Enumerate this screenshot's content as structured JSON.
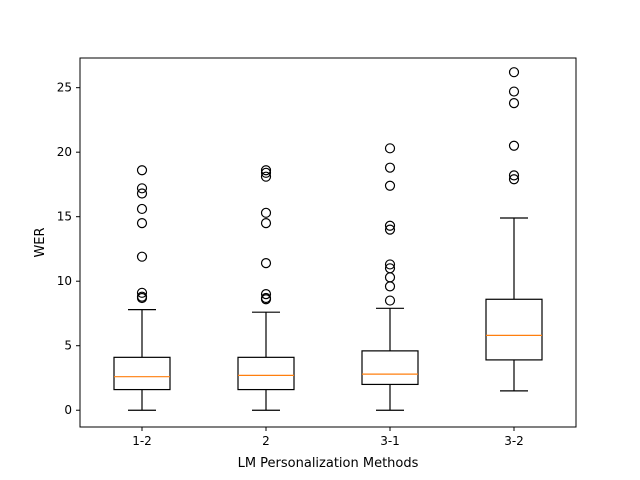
{
  "chart_data": {
    "type": "box",
    "title": "",
    "xlabel": "LM Personalization Methods",
    "ylabel": "WER",
    "ylim": [
      -1.3,
      27.3
    ],
    "yticks": [
      0,
      5,
      10,
      15,
      20,
      25
    ],
    "grid": false,
    "categories": [
      "1-2",
      "2",
      "3-1",
      "3-2"
    ],
    "boxes": [
      {
        "category": "1-2",
        "whisker_low": 0.0,
        "q1": 1.6,
        "median": 2.6,
        "q3": 4.1,
        "whisker_high": 7.8,
        "outliers": [
          8.7,
          8.8,
          9.1,
          11.9,
          14.5,
          15.6,
          16.8,
          17.2,
          18.6
        ]
      },
      {
        "category": "2",
        "whisker_low": 0.0,
        "q1": 1.6,
        "median": 2.7,
        "q3": 4.1,
        "whisker_high": 7.6,
        "outliers": [
          8.6,
          8.7,
          9.0,
          11.4,
          14.5,
          15.3,
          18.1,
          18.4,
          18.6
        ]
      },
      {
        "category": "3-1",
        "whisker_low": 0.0,
        "q1": 2.0,
        "median": 2.8,
        "q3": 4.6,
        "whisker_high": 7.9,
        "outliers": [
          8.5,
          9.6,
          10.3,
          11.0,
          11.3,
          14.0,
          14.3,
          17.4,
          18.8,
          20.3
        ]
      },
      {
        "category": "3-2",
        "whisker_low": 1.5,
        "q1": 3.9,
        "median": 5.8,
        "q3": 8.6,
        "whisker_high": 14.9,
        "outliers": [
          17.9,
          18.2,
          20.5,
          23.8,
          24.7,
          26.2
        ]
      }
    ],
    "colors": {
      "box": "#000000",
      "median": "#ff7f0e",
      "outlier": "#000000",
      "background": "#ffffff"
    }
  }
}
